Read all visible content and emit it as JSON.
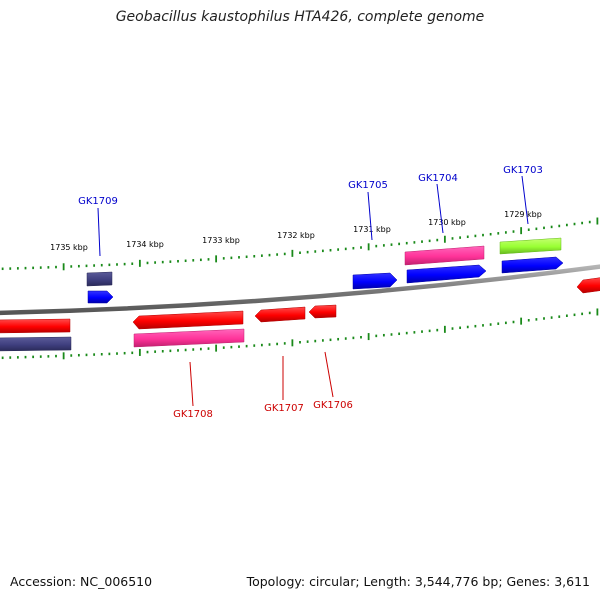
{
  "title": "Geobacillus kaustophilus HTA426, complete genome",
  "footer": {
    "accession_label": "Accession:",
    "accession": "NC_006510",
    "topology_label": "Topology:",
    "topology": "circular",
    "length_label": "Length:",
    "length": "3,544,776 bp",
    "genes_label": "Genes:",
    "genes": "3,611"
  },
  "colors": {
    "forward_gene_label": "#0000cc",
    "reverse_gene_label": "#cc0000",
    "backbone": "#888888",
    "ruler": "#1a8a1a",
    "red": "#ff0000",
    "pink": "#ff3399",
    "blue": "#0000ff",
    "slate": "#3f3f7f",
    "lime": "#99ff33"
  },
  "kbp_ticks": [
    "1735 kbp",
    "1734 kbp",
    "1733 kbp",
    "1732 kbp",
    "1731 kbp",
    "1730 kbp",
    "1729 kbp"
  ],
  "gene_labels": {
    "gk1709": "GK1709",
    "gk1705": "GK1705",
    "gk1704": "GK1704",
    "gk1703": "GK1703",
    "gk1708": "GK1708",
    "gk1707": "GK1707",
    "gk1706": "GK1706"
  }
}
